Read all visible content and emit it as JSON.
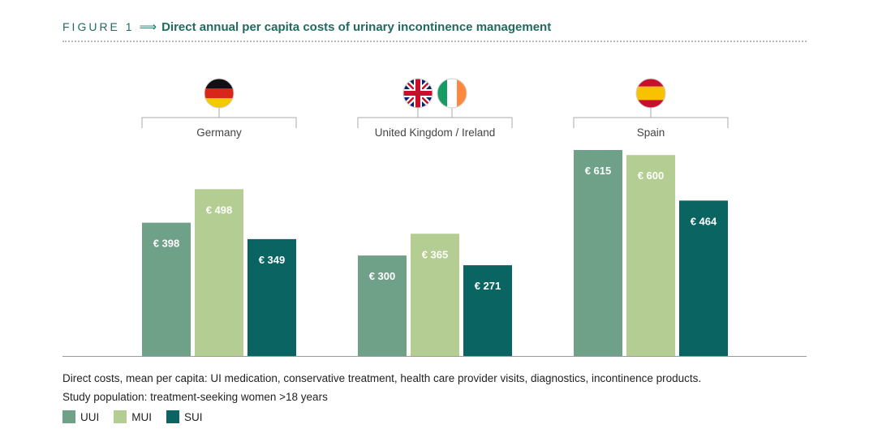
{
  "header": {
    "figure_label": "FIGURE 1",
    "arrow": "⟹",
    "title": "Direct annual per capita costs of urinary incontinence management"
  },
  "footnotes": {
    "line1": "Direct costs, mean per capita: UI medication, conservative treatment, health care provider visits, diagnostics, incontinence products.",
    "line2": "Study population: treatment-seeking women >18 years"
  },
  "colors": {
    "UUI": "#6fa088",
    "MUI": "#b4cd93",
    "SUI": "#0a6461",
    "title": "#1f6b62"
  },
  "chart_data": {
    "type": "bar",
    "title": "Direct annual per capita costs of urinary incontinence management",
    "categories": [
      "Germany",
      "United Kingdom / Ireland",
      "Spain"
    ],
    "flags": [
      [
        "germany-flag-icon"
      ],
      [
        "uk-flag-icon",
        "ireland-flag-icon"
      ],
      [
        "spain-flag-icon"
      ]
    ],
    "series": [
      {
        "name": "UUI",
        "values": [
          398,
          300,
          615
        ],
        "labels": [
          "€ 398",
          "€ 300",
          "€ 615"
        ]
      },
      {
        "name": "MUI",
        "values": [
          498,
          365,
          600
        ],
        "labels": [
          "€ 498",
          "€ 365",
          "€ 600"
        ]
      },
      {
        "name": "SUI",
        "values": [
          349,
          271,
          464
        ],
        "labels": [
          "€ 349",
          "€ 271",
          "€ 464"
        ]
      }
    ],
    "ylim": [
      0,
      615
    ],
    "grid": false,
    "legend_position": "bottom-left",
    "xlabel": "",
    "ylabel": ""
  }
}
